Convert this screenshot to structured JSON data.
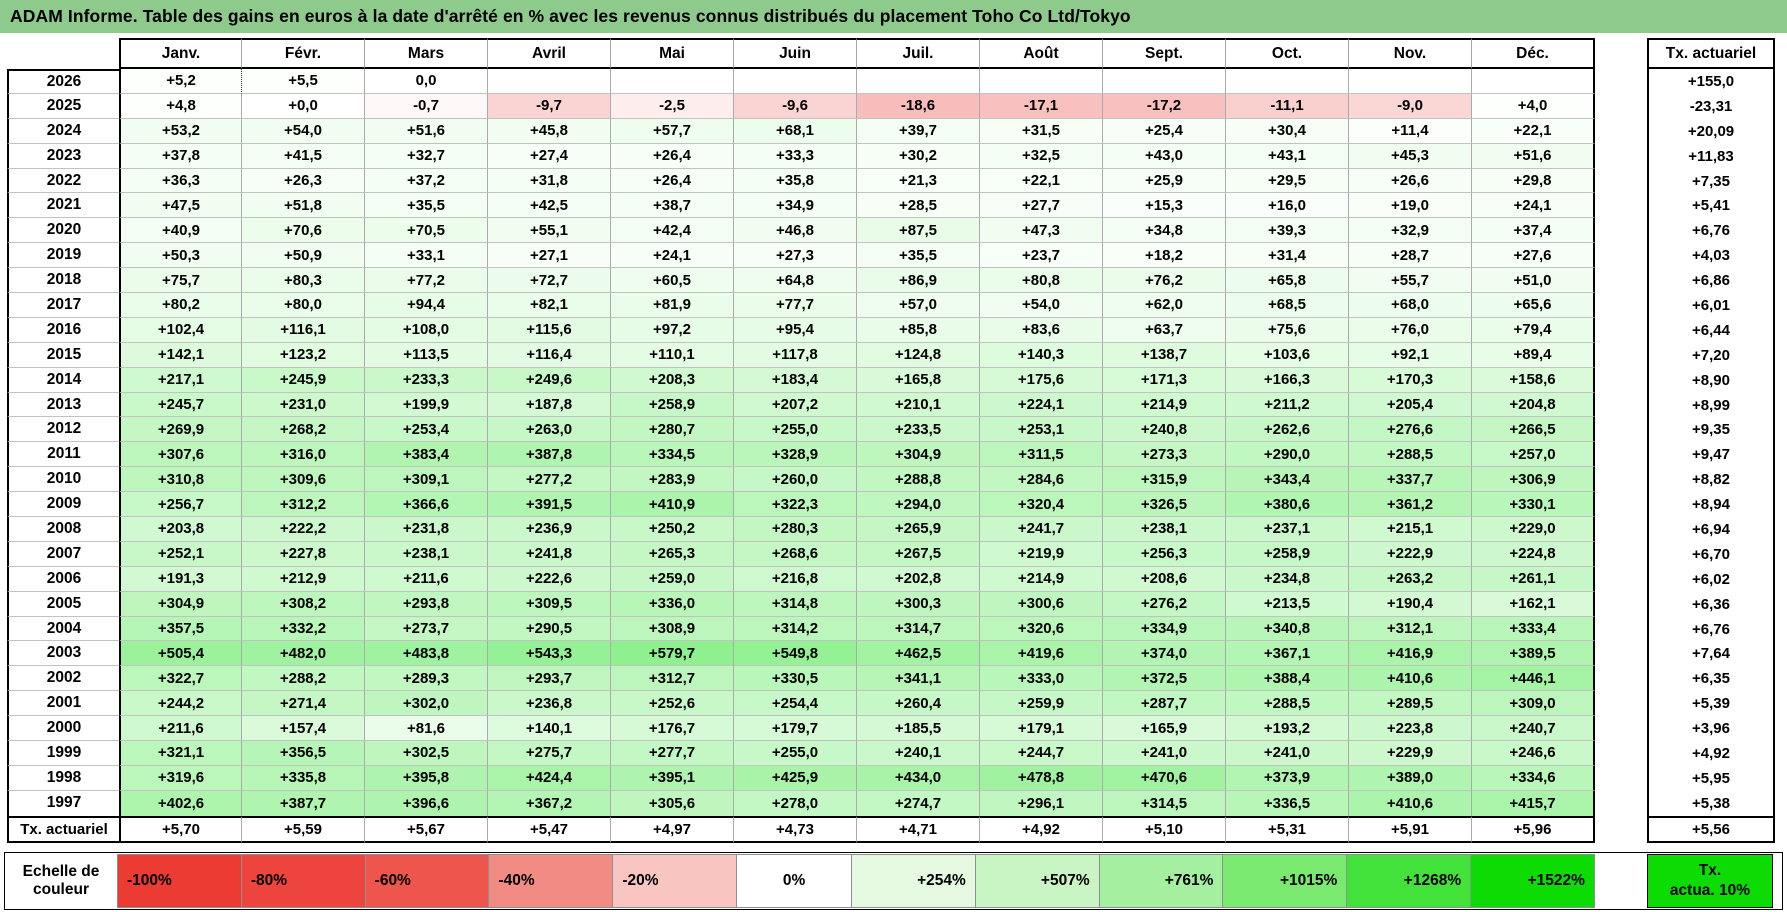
{
  "title": "ADAM Informe. Table des gains en euros à la date d'arrêté en % avec les revenus connus distribués du placement Toho Co Ltd/Tokyo",
  "colors": {
    "title_bar": "#8dca8c",
    "negative_full": "#e93a33",
    "positive_full": "#00dd00",
    "scale_neg_max": 100,
    "scale_pos_max": 1522
  },
  "table": {
    "month_headers": [
      "Janv.",
      "Févr.",
      "Mars",
      "Avril",
      "Mai",
      "Juin",
      "Juil.",
      "Août",
      "Sept.",
      "Oct.",
      "Nov.",
      "Déc."
    ],
    "right_header": "Tx. actuariel",
    "footer_label": "Tx. actuariel",
    "rows": [
      {
        "year": "2026",
        "values": [
          "+5,2",
          "+5,5",
          "0,0",
          "",
          "",
          "",
          "",
          "",
          "",
          "",
          "",
          ""
        ],
        "tx": "+155,0"
      },
      {
        "year": "2025",
        "values": [
          "+4,8",
          "+0,0",
          "-0,7",
          "-9,7",
          "-2,5",
          "-9,6",
          "-18,6",
          "-17,1",
          "-17,2",
          "-11,1",
          "-9,0",
          "+4,0"
        ],
        "tx": "-23,31"
      },
      {
        "year": "2024",
        "values": [
          "+53,2",
          "+54,0",
          "+51,6",
          "+45,8",
          "+57,7",
          "+68,1",
          "+39,7",
          "+31,5",
          "+25,4",
          "+30,4",
          "+11,4",
          "+22,1"
        ],
        "tx": "+20,09"
      },
      {
        "year": "2023",
        "values": [
          "+37,8",
          "+41,5",
          "+32,7",
          "+27,4",
          "+26,4",
          "+33,3",
          "+30,2",
          "+32,5",
          "+43,0",
          "+43,1",
          "+45,3",
          "+51,6"
        ],
        "tx": "+11,83"
      },
      {
        "year": "2022",
        "values": [
          "+36,3",
          "+26,3",
          "+37,2",
          "+31,8",
          "+26,4",
          "+35,8",
          "+21,3",
          "+22,1",
          "+25,9",
          "+29,5",
          "+26,6",
          "+29,8"
        ],
        "tx": "+7,35"
      },
      {
        "year": "2021",
        "values": [
          "+47,5",
          "+51,8",
          "+35,5",
          "+42,5",
          "+38,7",
          "+34,9",
          "+28,5",
          "+27,7",
          "+15,3",
          "+16,0",
          "+19,0",
          "+24,1"
        ],
        "tx": "+5,41"
      },
      {
        "year": "2020",
        "values": [
          "+40,9",
          "+70,6",
          "+70,5",
          "+55,1",
          "+42,4",
          "+46,8",
          "+87,5",
          "+47,3",
          "+34,8",
          "+39,3",
          "+32,9",
          "+37,4"
        ],
        "tx": "+6,76"
      },
      {
        "year": "2019",
        "values": [
          "+50,3",
          "+50,9",
          "+33,1",
          "+27,1",
          "+24,1",
          "+27,3",
          "+35,5",
          "+23,7",
          "+18,2",
          "+31,4",
          "+28,7",
          "+27,6"
        ],
        "tx": "+4,03"
      },
      {
        "year": "2018",
        "values": [
          "+75,7",
          "+80,3",
          "+77,2",
          "+72,7",
          "+60,5",
          "+64,8",
          "+86,9",
          "+80,8",
          "+76,2",
          "+65,8",
          "+55,7",
          "+51,0"
        ],
        "tx": "+6,86"
      },
      {
        "year": "2017",
        "values": [
          "+80,2",
          "+80,0",
          "+94,4",
          "+82,1",
          "+81,9",
          "+77,7",
          "+57,0",
          "+54,0",
          "+62,0",
          "+68,5",
          "+68,0",
          "+65,6"
        ],
        "tx": "+6,01"
      },
      {
        "year": "2016",
        "values": [
          "+102,4",
          "+116,1",
          "+108,0",
          "+115,6",
          "+97,2",
          "+95,4",
          "+85,8",
          "+83,6",
          "+63,7",
          "+75,6",
          "+76,0",
          "+79,4"
        ],
        "tx": "+6,44"
      },
      {
        "year": "2015",
        "values": [
          "+142,1",
          "+123,2",
          "+113,5",
          "+116,4",
          "+110,1",
          "+117,8",
          "+124,8",
          "+140,3",
          "+138,7",
          "+103,6",
          "+92,1",
          "+89,4"
        ],
        "tx": "+7,20"
      },
      {
        "year": "2014",
        "values": [
          "+217,1",
          "+245,9",
          "+233,3",
          "+249,6",
          "+208,3",
          "+183,4",
          "+165,8",
          "+175,6",
          "+171,3",
          "+166,3",
          "+170,3",
          "+158,6"
        ],
        "tx": "+8,90"
      },
      {
        "year": "2013",
        "values": [
          "+245,7",
          "+231,0",
          "+199,9",
          "+187,8",
          "+258,9",
          "+207,2",
          "+210,1",
          "+224,1",
          "+214,9",
          "+211,2",
          "+205,4",
          "+204,8"
        ],
        "tx": "+8,99"
      },
      {
        "year": "2012",
        "values": [
          "+269,9",
          "+268,2",
          "+253,4",
          "+263,0",
          "+280,7",
          "+255,0",
          "+233,5",
          "+253,1",
          "+240,8",
          "+262,6",
          "+276,6",
          "+266,5"
        ],
        "tx": "+9,35"
      },
      {
        "year": "2011",
        "values": [
          "+307,6",
          "+316,0",
          "+383,4",
          "+387,8",
          "+334,5",
          "+328,9",
          "+304,9",
          "+311,5",
          "+273,3",
          "+290,0",
          "+288,5",
          "+257,0"
        ],
        "tx": "+9,47"
      },
      {
        "year": "2010",
        "values": [
          "+310,8",
          "+309,6",
          "+309,1",
          "+277,2",
          "+283,9",
          "+260,0",
          "+288,8",
          "+284,6",
          "+315,9",
          "+343,4",
          "+337,7",
          "+306,9"
        ],
        "tx": "+8,82"
      },
      {
        "year": "2009",
        "values": [
          "+256,7",
          "+312,2",
          "+366,6",
          "+391,5",
          "+410,9",
          "+322,3",
          "+294,0",
          "+320,4",
          "+326,5",
          "+380,6",
          "+361,2",
          "+330,1"
        ],
        "tx": "+8,94"
      },
      {
        "year": "2008",
        "values": [
          "+203,8",
          "+222,2",
          "+231,8",
          "+236,9",
          "+250,2",
          "+280,3",
          "+265,9",
          "+241,7",
          "+238,1",
          "+237,1",
          "+215,1",
          "+229,0"
        ],
        "tx": "+6,94"
      },
      {
        "year": "2007",
        "values": [
          "+252,1",
          "+227,8",
          "+238,1",
          "+241,8",
          "+265,3",
          "+268,6",
          "+267,5",
          "+219,9",
          "+256,3",
          "+258,9",
          "+222,9",
          "+224,8"
        ],
        "tx": "+6,70"
      },
      {
        "year": "2006",
        "values": [
          "+191,3",
          "+212,9",
          "+211,6",
          "+222,6",
          "+259,0",
          "+216,8",
          "+202,8",
          "+214,9",
          "+208,6",
          "+234,8",
          "+263,2",
          "+261,1"
        ],
        "tx": "+6,02"
      },
      {
        "year": "2005",
        "values": [
          "+304,9",
          "+308,2",
          "+293,8",
          "+309,5",
          "+336,0",
          "+314,8",
          "+300,3",
          "+300,6",
          "+276,2",
          "+213,5",
          "+190,4",
          "+162,1"
        ],
        "tx": "+6,36"
      },
      {
        "year": "2004",
        "values": [
          "+357,5",
          "+332,2",
          "+273,7",
          "+290,5",
          "+308,9",
          "+314,2",
          "+314,7",
          "+320,6",
          "+334,9",
          "+340,8",
          "+312,1",
          "+333,4"
        ],
        "tx": "+6,76"
      },
      {
        "year": "2003",
        "values": [
          "+505,4",
          "+482,0",
          "+483,8",
          "+543,3",
          "+579,7",
          "+549,8",
          "+462,5",
          "+419,6",
          "+374,0",
          "+367,1",
          "+416,9",
          "+389,5"
        ],
        "tx": "+7,64"
      },
      {
        "year": "2002",
        "values": [
          "+322,7",
          "+288,2",
          "+289,3",
          "+293,7",
          "+312,7",
          "+330,5",
          "+341,1",
          "+333,0",
          "+372,5",
          "+388,4",
          "+410,6",
          "+446,1"
        ],
        "tx": "+6,35"
      },
      {
        "year": "2001",
        "values": [
          "+244,2",
          "+271,4",
          "+302,0",
          "+236,8",
          "+252,6",
          "+254,4",
          "+260,4",
          "+259,9",
          "+287,7",
          "+288,5",
          "+289,5",
          "+309,0"
        ],
        "tx": "+5,39"
      },
      {
        "year": "2000",
        "values": [
          "+211,6",
          "+157,4",
          "+81,6",
          "+140,1",
          "+176,7",
          "+179,7",
          "+185,5",
          "+179,1",
          "+165,9",
          "+193,2",
          "+223,8",
          "+240,7"
        ],
        "tx": "+3,96"
      },
      {
        "year": "1999",
        "values": [
          "+321,1",
          "+356,5",
          "+302,5",
          "+275,7",
          "+277,7",
          "+255,0",
          "+240,1",
          "+244,7",
          "+241,0",
          "+241,0",
          "+229,9",
          "+246,6"
        ],
        "tx": "+4,92"
      },
      {
        "year": "1998",
        "values": [
          "+319,6",
          "+335,8",
          "+395,8",
          "+424,4",
          "+395,1",
          "+425,9",
          "+434,0",
          "+478,8",
          "+470,6",
          "+373,9",
          "+389,0",
          "+334,6"
        ],
        "tx": "+5,95"
      },
      {
        "year": "1997",
        "values": [
          "+402,6",
          "+387,7",
          "+396,6",
          "+367,2",
          "+305,6",
          "+278,0",
          "+274,7",
          "+296,1",
          "+314,5",
          "+336,5",
          "+410,6",
          "+415,7"
        ],
        "tx": "+5,38"
      }
    ],
    "footer_values": [
      "+5,70",
      "+5,59",
      "+5,67",
      "+5,47",
      "+4,97",
      "+4,73",
      "+4,71",
      "+4,92",
      "+5,10",
      "+5,31",
      "+5,91",
      "+5,96"
    ],
    "footer_tx": "+5,56"
  },
  "legend": {
    "label_lines": [
      "Echelle de",
      "couleur"
    ],
    "cells": [
      {
        "label": "-100%",
        "color": "#ec3b33"
      },
      {
        "label": "-80%",
        "color": "#ed453e"
      },
      {
        "label": "-60%",
        "color": "#ee554d"
      },
      {
        "label": "-40%",
        "color": "#f18b84"
      },
      {
        "label": "-20%",
        "color": "#f8c5c1"
      },
      {
        "label": "0%",
        "color": "#ffffff"
      },
      {
        "label": "+254%",
        "color": "#e4f9e0"
      },
      {
        "label": "+507%",
        "color": "#c9f4c3"
      },
      {
        "label": "+761%",
        "color": "#a4efa0"
      },
      {
        "label": "+1015%",
        "color": "#79ea6f"
      },
      {
        "label": "+1268%",
        "color": "#43e23a"
      },
      {
        "label": "+1522%",
        "color": "#0cdc04"
      }
    ],
    "right_label_lines": [
      "Tx.",
      "actua. 10%"
    ],
    "right_color": "#0cdc04"
  }
}
